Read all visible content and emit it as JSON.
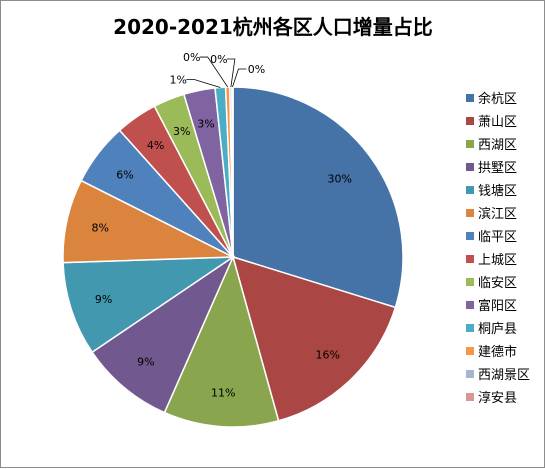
{
  "chart_data": {
    "type": "pie",
    "title": "2020-2021杭州各区人口增量占比",
    "legend_position": "right",
    "slices": [
      {
        "name": "余杭区",
        "value": 30,
        "label": "30%",
        "color": "#4572a7"
      },
      {
        "name": "萧山区",
        "value": 16,
        "label": "16%",
        "color": "#aa4643"
      },
      {
        "name": "西湖区",
        "value": 11,
        "label": "11%",
        "color": "#89a54e"
      },
      {
        "name": "拱墅区",
        "value": 9,
        "label": "9%",
        "color": "#71588f"
      },
      {
        "name": "钱塘区",
        "value": 9,
        "label": "9%",
        "color": "#4198af"
      },
      {
        "name": "滨江区",
        "value": 8,
        "label": "8%",
        "color": "#db843d"
      },
      {
        "name": "临平区",
        "value": 6,
        "label": "6%",
        "color": "#4f81bd"
      },
      {
        "name": "上城区",
        "value": 4,
        "label": "4%",
        "color": "#c0504d"
      },
      {
        "name": "临安区",
        "value": 3,
        "label": "3%",
        "color": "#9bbb59"
      },
      {
        "name": "富阳区",
        "value": 3,
        "label": "3%",
        "color": "#8064a2"
      },
      {
        "name": "桐庐县",
        "value": 1,
        "label": "1%",
        "color": "#4bacc6"
      },
      {
        "name": "建德市",
        "value": 0.4,
        "label": "0%",
        "color": "#f79646"
      },
      {
        "name": "西湖景区",
        "value": 0.2,
        "label": "0%",
        "color": "#a5b6d2"
      },
      {
        "name": "淳安县",
        "value": 0.1,
        "label": "0%",
        "color": "#d99694"
      }
    ]
  }
}
